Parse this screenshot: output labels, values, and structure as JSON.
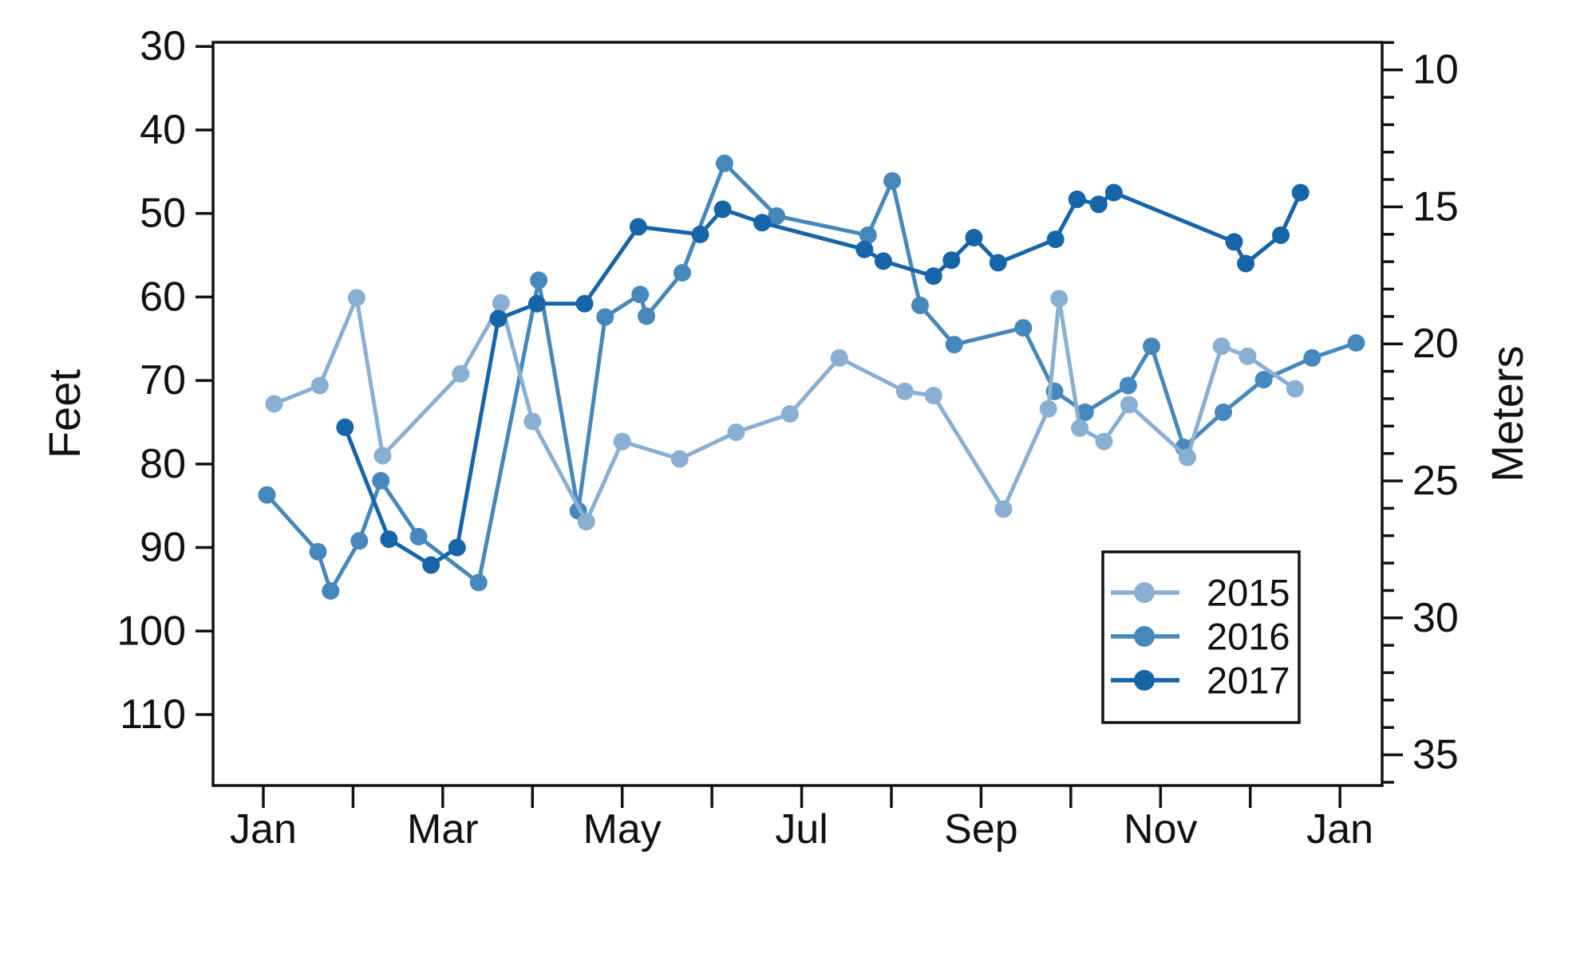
{
  "figure": {
    "kind": "line chart",
    "background": "#ffffff",
    "axis_color": "#111111"
  },
  "chart_data": {
    "type": "line",
    "title": "",
    "x_unit": "month index (0 = Jan 1, 12 = following Jan 1)",
    "x_tick_labels": [
      "Jan",
      "",
      "Mar",
      "",
      "May",
      "",
      "Jul",
      "",
      "Sep",
      "",
      "Nov",
      "",
      "Jan"
    ],
    "y_left": {
      "label": "Feet",
      "ticks": [
        30,
        40,
        50,
        60,
        70,
        80,
        90,
        100,
        110
      ],
      "top_value": 29.5,
      "bottom_value": 118.5,
      "inverted": true
    },
    "y_right": {
      "label": "Meters",
      "major_ticks": [
        10,
        15,
        20,
        25,
        30,
        35
      ],
      "minor_tick_step": 1,
      "feet_per_meter": 3.28084
    },
    "legend": {
      "position": "lower right",
      "entries": [
        "2015",
        "2016",
        "2017"
      ]
    },
    "series": [
      {
        "name": "2015",
        "color": "#89AFD3",
        "points": [
          [
            0.12,
            72.8
          ],
          [
            0.63,
            70.6
          ],
          [
            1.04,
            60.1
          ],
          [
            1.33,
            79.0
          ],
          [
            2.2,
            69.2
          ],
          [
            2.65,
            60.7
          ],
          [
            3.0,
            74.9
          ],
          [
            3.6,
            86.9
          ],
          [
            4.0,
            77.3
          ],
          [
            4.64,
            79.4
          ],
          [
            5.27,
            76.2
          ],
          [
            5.87,
            74.0
          ],
          [
            6.42,
            67.3
          ],
          [
            7.15,
            71.3
          ],
          [
            7.47,
            71.8
          ],
          [
            8.25,
            85.4
          ],
          [
            8.75,
            73.4
          ],
          [
            8.87,
            60.2
          ],
          [
            9.1,
            75.7
          ],
          [
            9.37,
            77.3
          ],
          [
            9.65,
            72.9
          ],
          [
            10.3,
            79.2
          ],
          [
            10.68,
            65.9
          ],
          [
            10.97,
            67.1
          ],
          [
            11.5,
            71.0
          ]
        ]
      },
      {
        "name": "2016",
        "color": "#4788BC",
        "points": [
          [
            0.04,
            83.7
          ],
          [
            0.61,
            90.5
          ],
          [
            0.75,
            95.2
          ],
          [
            1.07,
            89.2
          ],
          [
            1.31,
            82.0
          ],
          [
            1.73,
            88.7
          ],
          [
            2.4,
            94.2
          ],
          [
            3.07,
            58.0
          ],
          [
            3.51,
            85.6
          ],
          [
            3.81,
            62.4
          ],
          [
            4.2,
            59.7
          ],
          [
            4.27,
            62.3
          ],
          [
            4.67,
            57.1
          ],
          [
            5.14,
            44.0
          ],
          [
            5.72,
            50.3
          ],
          [
            6.74,
            52.6
          ],
          [
            7.01,
            46.1
          ],
          [
            7.32,
            61.0
          ],
          [
            7.7,
            65.7
          ],
          [
            8.47,
            63.7
          ],
          [
            8.82,
            71.3
          ],
          [
            9.16,
            73.8
          ],
          [
            9.64,
            70.6
          ],
          [
            9.9,
            65.9
          ],
          [
            10.26,
            78.0
          ],
          [
            10.7,
            73.8
          ],
          [
            11.15,
            69.9
          ],
          [
            11.69,
            67.3
          ],
          [
            12.18,
            65.5
          ]
        ]
      },
      {
        "name": "2017",
        "color": "#1765A9",
        "points": [
          [
            0.91,
            75.6
          ],
          [
            1.4,
            89.0
          ],
          [
            1.87,
            92.1
          ],
          [
            2.16,
            90.0
          ],
          [
            2.62,
            62.6
          ],
          [
            3.05,
            60.8
          ],
          [
            3.58,
            60.8
          ],
          [
            4.18,
            51.6
          ],
          [
            4.87,
            52.5
          ],
          [
            5.12,
            49.5
          ],
          [
            5.56,
            51.1
          ],
          [
            6.7,
            54.3
          ],
          [
            6.91,
            55.7
          ],
          [
            7.47,
            57.5
          ],
          [
            7.67,
            55.6
          ],
          [
            7.92,
            52.9
          ],
          [
            8.19,
            55.9
          ],
          [
            8.83,
            53.1
          ],
          [
            9.07,
            48.3
          ],
          [
            9.31,
            48.9
          ],
          [
            9.48,
            47.5
          ],
          [
            10.82,
            53.4
          ],
          [
            10.95,
            56.0
          ],
          [
            11.34,
            52.6
          ],
          [
            11.56,
            47.5
          ]
        ]
      }
    ]
  }
}
